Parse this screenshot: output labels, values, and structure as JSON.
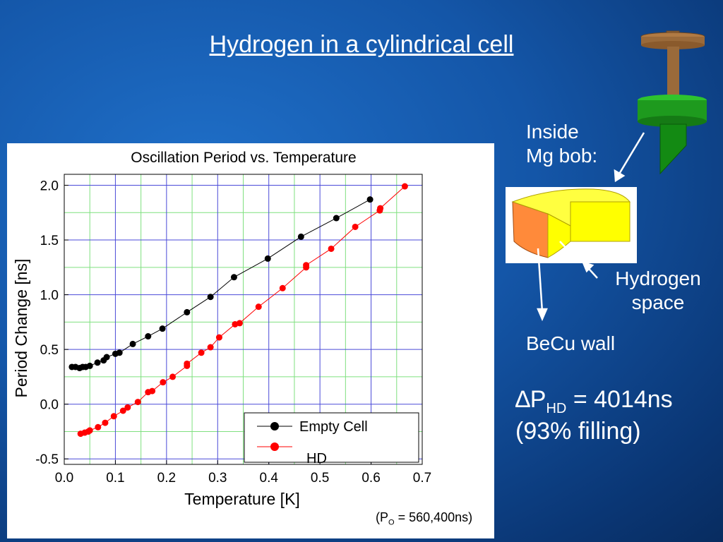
{
  "slide": {
    "title": "Hydrogen in a cylindrical cell"
  },
  "annotations": {
    "inside_mg_bob_line1": "Inside",
    "inside_mg_bob_line2": "Mg bob:",
    "hydrogen_space_line1": "Hydrogen",
    "hydrogen_space_line2": "space",
    "becu_wall": "BeCu wall",
    "delta_symbol": "∆P",
    "delta_subscript": "HD",
    "delta_value": " = 4014ns",
    "filling": "(93% filling)",
    "pressure_prefix": "(P",
    "pressure_subscript": "O",
    "pressure_value": " = 560,400ns)"
  },
  "colors": {
    "background": "#1456a8",
    "empty_cell": "#000000",
    "hd": "#ff0000",
    "grid_major": "#4a4ad8",
    "grid_minor": "#7fe07f",
    "cylinder_side": "#ff8a3a",
    "cylinder_top": "#ffff00",
    "bob_green": "#1e9a1e",
    "bob_stem": "#9a6a3a"
  },
  "chart_data": {
    "type": "line",
    "title": "Oscillation Period vs. Temperature",
    "xlabel": "Temperature [K]",
    "ylabel": "Period Change [ns]",
    "xlim": [
      0.0,
      0.7
    ],
    "ylim": [
      -0.55,
      2.1
    ],
    "xticks": [
      "0.0",
      "0.1",
      "0.2",
      "0.3",
      "0.4",
      "0.5",
      "0.6",
      "0.7"
    ],
    "yticks": [
      "-0.5",
      "0.0",
      "0.5",
      "1.0",
      "1.5",
      "2.0"
    ],
    "grid": true,
    "legend_position": "bottom-right",
    "series": [
      {
        "name": "Empty Cell",
        "color": "#000000",
        "points": [
          [
            0.015,
            0.34
          ],
          [
            0.022,
            0.34
          ],
          [
            0.03,
            0.33
          ],
          [
            0.036,
            0.34
          ],
          [
            0.042,
            0.34
          ],
          [
            0.05,
            0.35
          ],
          [
            0.065,
            0.38
          ],
          [
            0.077,
            0.4
          ],
          [
            0.083,
            0.43
          ],
          [
            0.1,
            0.46
          ],
          [
            0.108,
            0.47
          ],
          [
            0.134,
            0.55
          ],
          [
            0.164,
            0.62
          ],
          [
            0.192,
            0.69
          ],
          [
            0.24,
            0.84
          ],
          [
            0.286,
            0.98
          ],
          [
            0.332,
            1.16
          ],
          [
            0.398,
            1.33
          ],
          [
            0.463,
            1.53
          ],
          [
            0.532,
            1.7
          ],
          [
            0.598,
            1.87
          ]
        ]
      },
      {
        "name": "HD",
        "color": "#ff0000",
        "points": [
          [
            0.032,
            -0.27
          ],
          [
            0.04,
            -0.26
          ],
          [
            0.047,
            -0.25
          ],
          [
            0.05,
            -0.24
          ],
          [
            0.066,
            -0.21
          ],
          [
            0.08,
            -0.17
          ],
          [
            0.097,
            -0.11
          ],
          [
            0.115,
            -0.06
          ],
          [
            0.124,
            -0.03
          ],
          [
            0.144,
            0.02
          ],
          [
            0.164,
            0.11
          ],
          [
            0.172,
            0.12
          ],
          [
            0.193,
            0.2
          ],
          [
            0.212,
            0.25
          ],
          [
            0.24,
            0.35
          ],
          [
            0.24,
            0.37
          ],
          [
            0.268,
            0.47
          ],
          [
            0.286,
            0.52
          ],
          [
            0.303,
            0.61
          ],
          [
            0.334,
            0.73
          ],
          [
            0.343,
            0.74
          ],
          [
            0.38,
            0.89
          ],
          [
            0.427,
            1.06
          ],
          [
            0.473,
            1.25
          ],
          [
            0.473,
            1.27
          ],
          [
            0.522,
            1.42
          ],
          [
            0.569,
            1.62
          ],
          [
            0.617,
            1.77
          ],
          [
            0.618,
            1.79
          ],
          [
            0.666,
            1.99
          ]
        ]
      }
    ]
  }
}
